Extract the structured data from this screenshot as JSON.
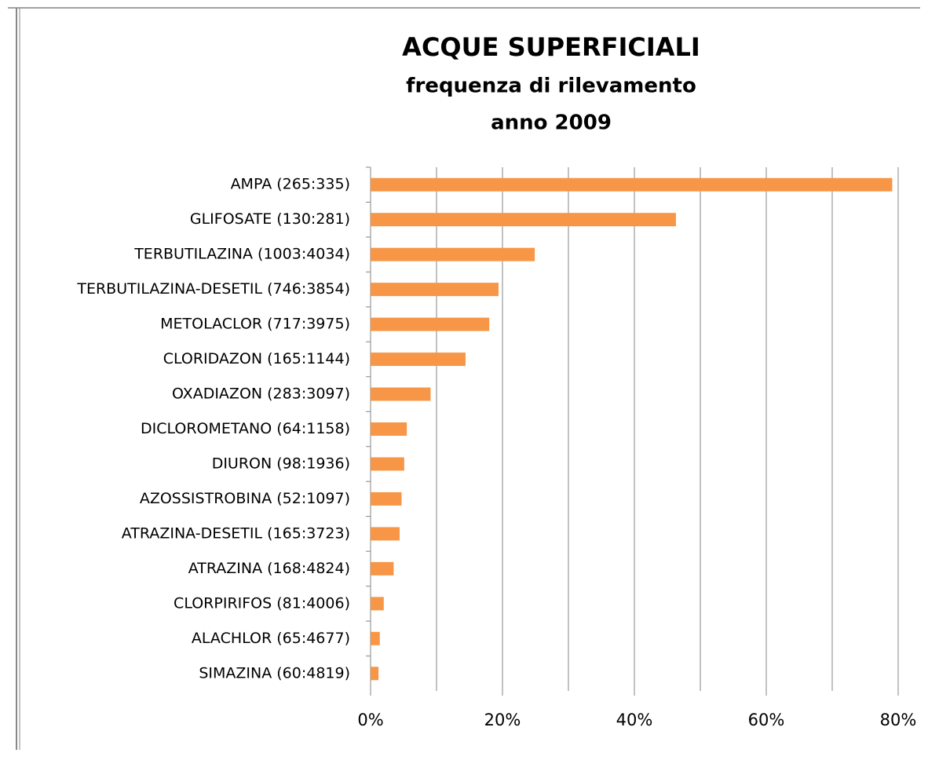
{
  "chart_data": {
    "type": "bar",
    "orientation": "horizontal",
    "title": "ACQUE SUPERFICIALI",
    "subtitle": [
      "frequenza di rilevamento",
      "anno 2009"
    ],
    "categories": [
      "AMPA (265:335)",
      "GLIFOSATE (130:281)",
      "TERBUTILAZINA (1003:4034)",
      "TERBUTILAZINA-DESETIL (746:3854)",
      "METOLACLOR (717:3975)",
      "CLORIDAZON (165:1144)",
      "OXADIAZON (283:3097)",
      "DICLOROMETANO (64:1158)",
      "DIURON (98:1936)",
      "AZOSSISTROBINA (52:1097)",
      "ATRAZINA-DESETIL (165:3723)",
      "ATRAZINA (168:4824)",
      "CLORPIRIFOS (81:4006)",
      "ALACHLOR (65:4677)",
      "SIMAZINA (60:4819)"
    ],
    "values": [
      79.1,
      46.3,
      24.9,
      19.4,
      18.0,
      14.4,
      9.1,
      5.5,
      5.1,
      4.7,
      4.4,
      3.5,
      2.0,
      1.4,
      1.2
    ],
    "color": "#f79646",
    "xlim": [
      0,
      80
    ],
    "xticks": [
      {
        "value": 0,
        "label": "0%"
      },
      {
        "value": 20,
        "label": "20%"
      },
      {
        "value": 40,
        "label": "40%"
      },
      {
        "value": 60,
        "label": "60%"
      },
      {
        "value": 80,
        "label": "80%"
      }
    ],
    "minor_xticks": [
      10,
      30,
      50,
      70
    ],
    "grid": true
  }
}
